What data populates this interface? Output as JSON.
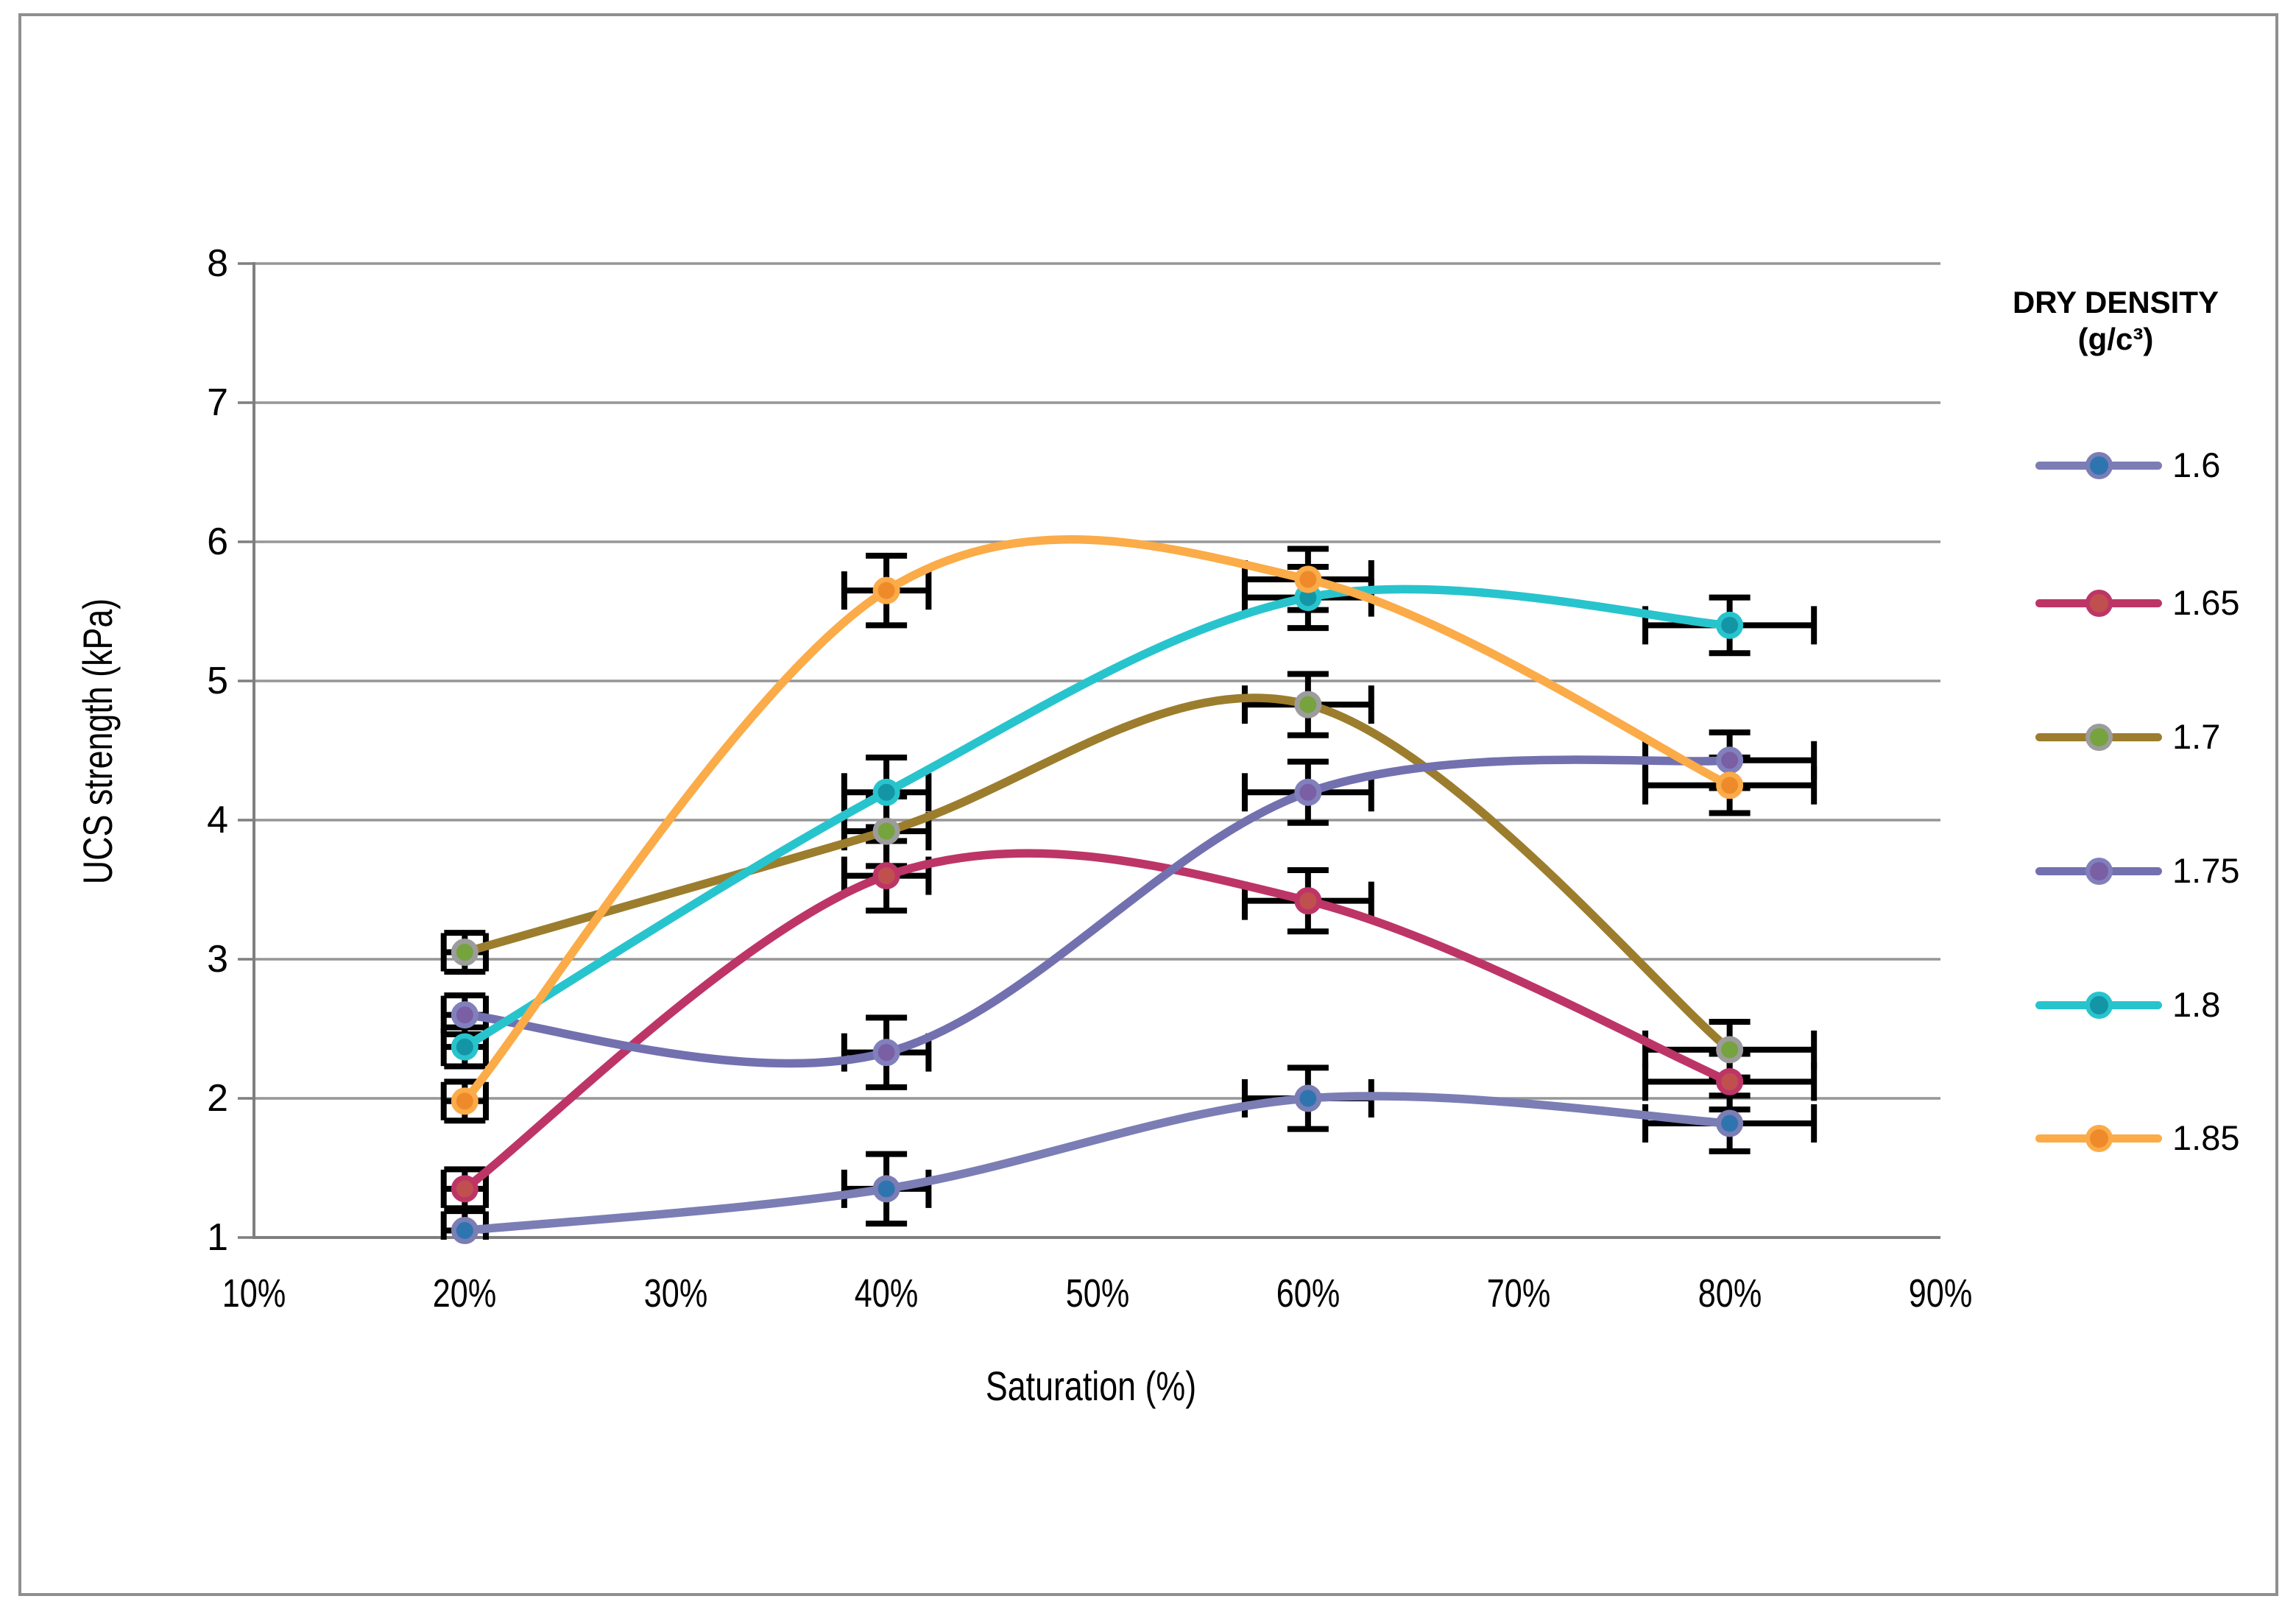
{
  "chart_data": {
    "type": "line",
    "title": "",
    "xlabel": "Saturation (%)",
    "ylabel": "UCS strength (kPa)",
    "xlim": [
      10,
      90
    ],
    "ylim": [
      1,
      8
    ],
    "grid": "horizontal-major",
    "x_ticks": [
      {
        "value": 10,
        "label": "10%"
      },
      {
        "value": 20,
        "label": "20%"
      },
      {
        "value": 30,
        "label": "30%"
      },
      {
        "value": 40,
        "label": "40%"
      },
      {
        "value": 50,
        "label": "50%"
      },
      {
        "value": 60,
        "label": "60%"
      },
      {
        "value": 70,
        "label": "70%"
      },
      {
        "value": 80,
        "label": "80%"
      },
      {
        "value": 90,
        "label": "90%"
      }
    ],
    "y_ticks": [
      {
        "value": 1,
        "label": "1"
      },
      {
        "value": 2,
        "label": "2"
      },
      {
        "value": 3,
        "label": "3"
      },
      {
        "value": 4,
        "label": "4"
      },
      {
        "value": 5,
        "label": "5"
      },
      {
        "value": 6,
        "label": "6"
      },
      {
        "value": 7,
        "label": "7"
      },
      {
        "value": 8,
        "label": "8"
      }
    ],
    "x": [
      20,
      40,
      60,
      80
    ],
    "series": [
      {
        "name": "1.6",
        "line_color": "#7b7db5",
        "marker_color": "#2e75b0",
        "marker_outline": "#7b7db5",
        "values": [
          1.05,
          1.35,
          2.0,
          1.82
        ]
      },
      {
        "name": "1.65",
        "line_color": "#bd3567",
        "marker_color": "#c0504d",
        "marker_outline": "#bd3567",
        "values": [
          1.35,
          3.6,
          3.42,
          2.12
        ]
      },
      {
        "name": "1.7",
        "line_color": "#9c7d2d",
        "marker_color": "#76a33e",
        "marker_outline": "#9c9c9c",
        "values": [
          3.05,
          3.92,
          4.83,
          2.35
        ]
      },
      {
        "name": "1.75",
        "line_color": "#7370b0",
        "marker_color": "#7a5fa5",
        "marker_outline": "#8280bc",
        "values": [
          2.6,
          2.33,
          4.2,
          4.43
        ]
      },
      {
        "name": "1.8",
        "line_color": "#28c4cd",
        "marker_color": "#1495a6",
        "marker_outline": "#28c4cd",
        "values": [
          2.37,
          4.2,
          5.6,
          5.4
        ]
      },
      {
        "name": "1.85",
        "line_color": "#fbab48",
        "marker_color": "#ef8a2b",
        "marker_outline": "#fbab48",
        "values": [
          1.98,
          5.65,
          5.73,
          4.25
        ]
      }
    ],
    "error_bars": {
      "color": "#000000",
      "y_by_point": [
        0.14,
        0.25,
        0.22,
        0.2
      ],
      "x_pct_by_point": [
        1,
        2,
        3,
        4
      ]
    },
    "legend": {
      "title_line1": "DRY DENSITY",
      "title_line2": "(g/c³)",
      "position": "right",
      "entries": [
        "1.6",
        "1.65",
        "1.7",
        "1.75",
        "1.8",
        "1.85"
      ]
    },
    "colors": {
      "gridline": "#969696",
      "axis": "#7f7f7f",
      "figure_border": "#8f8f8f",
      "text": "#000000",
      "background": "#ffffff"
    }
  }
}
